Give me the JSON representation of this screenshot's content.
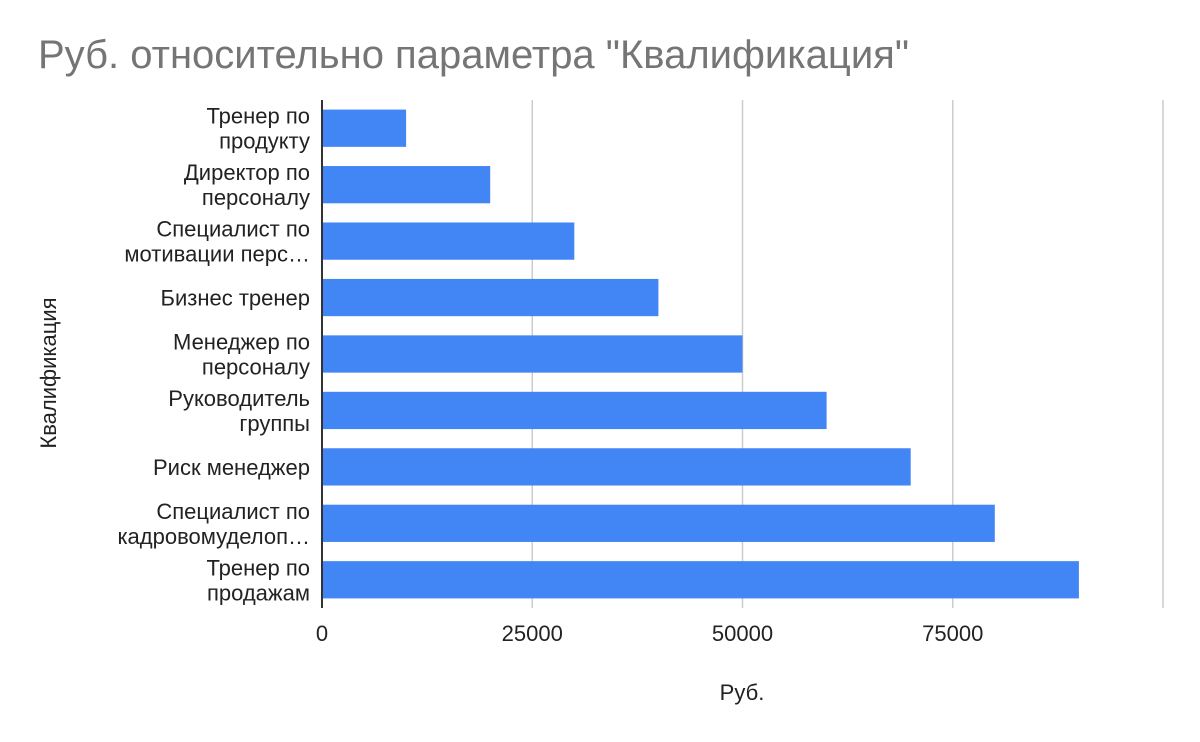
{
  "chart_data": {
    "type": "bar",
    "orientation": "horizontal",
    "title": "Руб. относительно параметра \"Квалификация\"",
    "xlabel": "Руб.",
    "ylabel": "Квалификация",
    "categories": [
      [
        "Тренер по",
        "продукту"
      ],
      [
        "Директор по",
        "персоналу"
      ],
      [
        "Специалист по",
        "мотивации перс…"
      ],
      [
        "Бизнес тренер"
      ],
      [
        "Менеджер по",
        "персоналу"
      ],
      [
        "Руководитель",
        "группы"
      ],
      [
        "Риск менеджер"
      ],
      [
        "Специалист по",
        "кадровомуделоп…"
      ],
      [
        "Тренер по",
        "продажам"
      ]
    ],
    "values": [
      10000,
      20000,
      30000,
      40000,
      50000,
      60000,
      70000,
      80000,
      90000
    ],
    "xlim": [
      0,
      100000
    ],
    "xticks": [
      0,
      25000,
      50000,
      75000
    ],
    "grid": true,
    "colors": {
      "bar": "#4285f4",
      "grid": "#cccccc",
      "axis": "#333333"
    }
  }
}
